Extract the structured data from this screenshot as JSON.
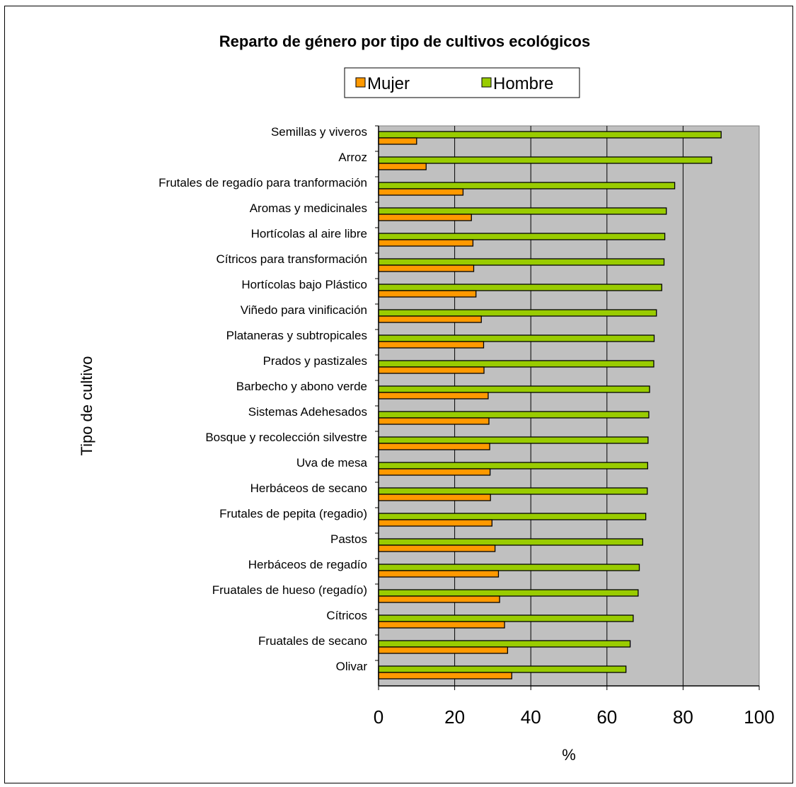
{
  "chart_data": {
    "type": "bar",
    "orientation": "horizontal",
    "title": "Reparto de género por tipo de cultivos ecológicos",
    "xlabel": "%",
    "ylabel": "Tipo de cultivo",
    "xlim": [
      0,
      100
    ],
    "xticks": [
      "0",
      "20",
      "40",
      "60",
      "80",
      "100"
    ],
    "grid": "vertical",
    "legend_position": "top",
    "plot_background": "#c0c0c0",
    "categories": [
      "Semillas y viveros",
      "Arroz",
      "Frutales de regadío para tranformación",
      "Aromas y medicinales",
      "Hortícolas al aire libre",
      "Cítricos para transformación",
      "Hortícolas bajo Plástico",
      "Viñedo para vinificación",
      "Plataneras y subtropicales",
      "Prados y pastizales",
      "Barbecho y abono verde",
      "Sistemas Adehesados",
      "Bosque y recolección silvestre",
      "Uva de mesa",
      "Herbáceos de secano",
      "Frutales de pepita (regadio)",
      "Pastos",
      "Herbáceos de regadío",
      "Fruatales de hueso (regadío)",
      "Cítricos",
      "Fruatales de secano",
      "Olivar"
    ],
    "series": [
      {
        "name": "Mujer",
        "color": "#ff9900",
        "values": [
          10,
          12.5,
          22.2,
          24.4,
          24.8,
          25,
          25.6,
          27,
          27.6,
          27.7,
          28.8,
          29,
          29.2,
          29.3,
          29.4,
          29.8,
          30.6,
          31.5,
          31.8,
          33.1,
          33.9,
          35
        ]
      },
      {
        "name": "Hombre",
        "color": "#99cc00",
        "values": [
          90,
          87.5,
          77.8,
          75.6,
          75.2,
          75,
          74.4,
          73,
          72.4,
          72.3,
          71.2,
          71,
          70.8,
          70.7,
          70.6,
          70.2,
          69.4,
          68.5,
          68.2,
          66.9,
          66.1,
          65
        ]
      }
    ]
  }
}
